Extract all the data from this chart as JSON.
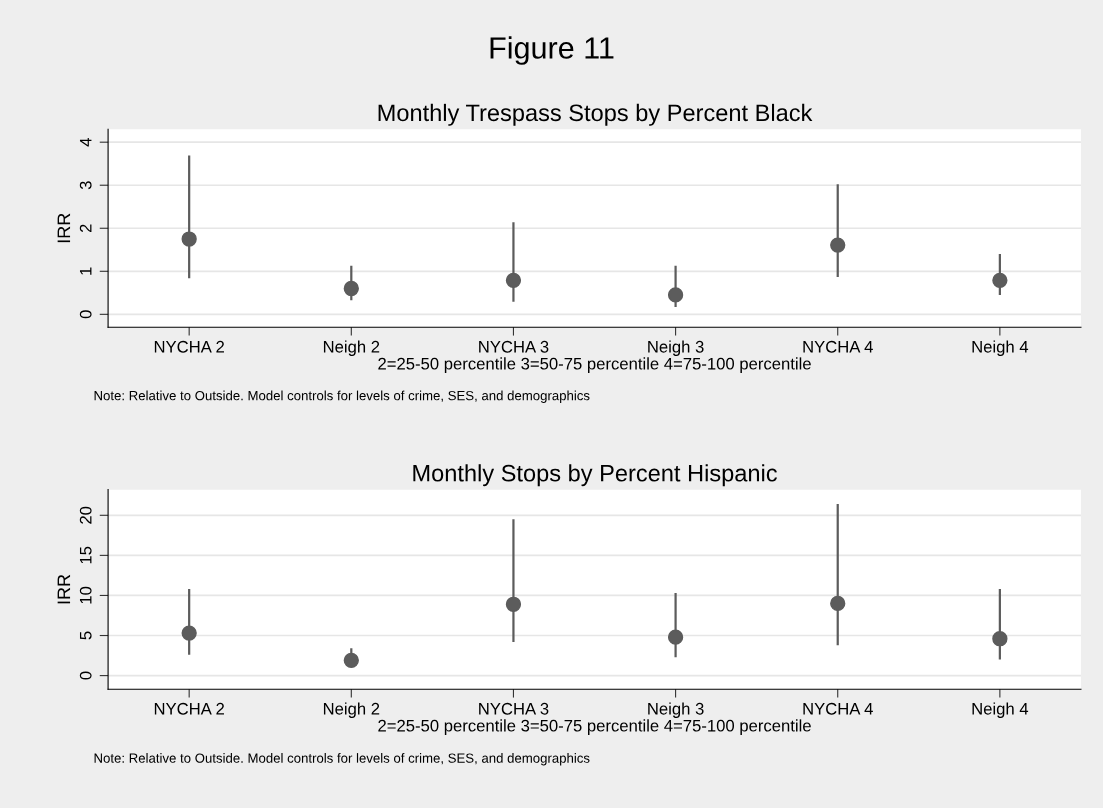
{
  "chart_data": [
    {
      "type": "scatter",
      "title": "Monthly Trespass Stops by Percent Black",
      "ylabel": "IRR",
      "xlabel": "2=25-50 percentile 3=50-75 percentile 4=75-100 percentile",
      "annotations": [
        "Figure 11",
        "Note: Relative to Outside. Model controls for levels of crime, SES, and demographics"
      ],
      "categories": [
        "NYCHA 2",
        "Neigh 2",
        "NYCHA 3",
        "Neigh 3",
        "NYCHA 4",
        "Neigh 4"
      ],
      "series": [
        {
          "color": "#5c5c5c",
          "values": [
            1.75,
            0.6,
            0.79,
            0.45,
            1.61,
            0.79
          ],
          "errors": [
            [
              0.84,
              3.69
            ],
            [
              0.33,
              1.13
            ],
            [
              0.29,
              2.14
            ],
            [
              0.17,
              1.13
            ],
            [
              0.87,
              3.02
            ],
            [
              0.45,
              1.4
            ]
          ]
        }
      ],
      "ylim": [
        -0.3,
        4.3
      ],
      "yticks": [
        0,
        1,
        2,
        3,
        4
      ],
      "grid": "y",
      "marker": "circle"
    },
    {
      "type": "scatter",
      "title": "Monthly Stops by Percent Hispanic",
      "ylabel": "IRR",
      "xlabel": "2=25-50 percentile 3=50-75 percentile 4=75-100 percentile",
      "annotations": [
        "Note: Relative to Outside. Model controls for levels of crime, SES, and demographics"
      ],
      "categories": [
        "NYCHA 2",
        "Neigh 2",
        "NYCHA 3",
        "Neigh 3",
        "NYCHA 4",
        "Neigh 4"
      ],
      "series": [
        {
          "color": "#5c5c5c",
          "values": [
            5.3,
            1.9,
            8.9,
            4.8,
            9.0,
            4.6
          ],
          "errors": [
            [
              2.6,
              10.8
            ],
            [
              1.1,
              3.4
            ],
            [
              4.2,
              19.5
            ],
            [
              2.3,
              10.3
            ],
            [
              3.8,
              21.4
            ],
            [
              2.0,
              10.8
            ]
          ]
        }
      ],
      "ylim": [
        -1.7,
        23.2
      ],
      "yticks": [
        0,
        5,
        10,
        15,
        20
      ],
      "grid": "y",
      "marker": "circle"
    }
  ]
}
